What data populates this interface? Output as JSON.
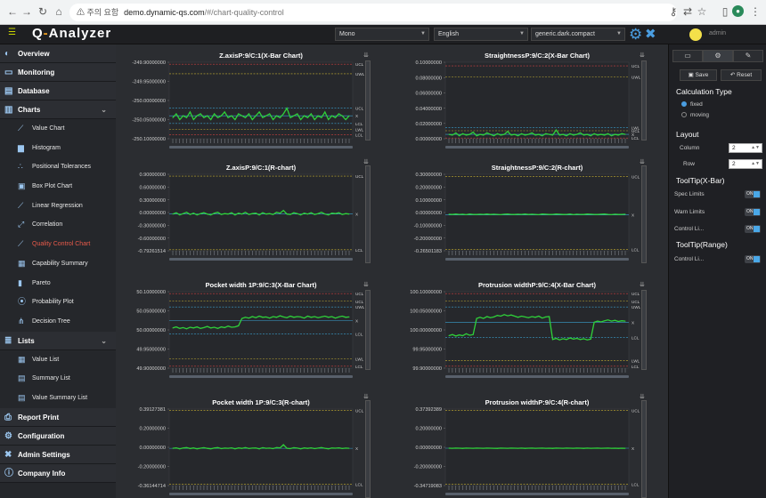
{
  "browser": {
    "warning": "⚠ 주의 요함",
    "host": "demo.dynamic-qs.com",
    "path": "/#/chart-quality-control",
    "nav_icons": [
      "back-icon",
      "forward-icon",
      "reload-icon",
      "home-icon"
    ],
    "right_icons": [
      "key-icon",
      "translate-icon",
      "star-icon",
      "sidebar-icon",
      "profile-icon",
      "menu-icon"
    ]
  },
  "app": {
    "logo_q": "Q",
    "logo_dash": "-",
    "logo_rest": "Analyzer",
    "lang_select": "Mono",
    "locale_select": "English",
    "theme_select": "generic.dark.compact",
    "user": "admin",
    "accent": "#4a9de0"
  },
  "sidebar": {
    "items": [
      {
        "type": "group",
        "label": "Overview",
        "icon": "globe-icon"
      },
      {
        "type": "group",
        "label": "Monitoring",
        "icon": "monitor-icon"
      },
      {
        "type": "group",
        "label": "Database",
        "icon": "database-icon"
      },
      {
        "type": "group",
        "label": "Charts",
        "icon": "chart-icon",
        "expanded": true
      },
      {
        "type": "item",
        "label": "Value Chart",
        "icon": "line-chart-icon"
      },
      {
        "type": "item",
        "label": "Histogram",
        "icon": "histogram-icon"
      },
      {
        "type": "item",
        "label": "Positional Tolerances",
        "icon": "scatter-icon"
      },
      {
        "type": "item",
        "label": "Box Plot Chart",
        "icon": "boxplot-icon"
      },
      {
        "type": "item",
        "label": "Linear Regression",
        "icon": "regression-icon"
      },
      {
        "type": "item",
        "label": "Correlation",
        "icon": "correlation-icon"
      },
      {
        "type": "item",
        "label": "Quality Control Chart",
        "icon": "control-chart-icon",
        "active": true
      },
      {
        "type": "item",
        "label": "Capability Summary",
        "icon": "capability-icon"
      },
      {
        "type": "item",
        "label": "Pareto",
        "icon": "pareto-icon"
      },
      {
        "type": "item",
        "label": "Probability Plot",
        "icon": "probability-icon"
      },
      {
        "type": "item",
        "label": "Decision Tree",
        "icon": "tree-icon"
      },
      {
        "type": "group",
        "label": "Lists",
        "icon": "list-icon",
        "expanded": true
      },
      {
        "type": "item",
        "label": "Value List",
        "icon": "grid-icon"
      },
      {
        "type": "item",
        "label": "Summary List",
        "icon": "summary-icon"
      },
      {
        "type": "item",
        "label": "Value Summary List",
        "icon": "value-summary-icon"
      },
      {
        "type": "group",
        "label": "Report Print",
        "icon": "print-icon"
      },
      {
        "type": "group",
        "label": "Configuration",
        "icon": "gear-icon"
      },
      {
        "type": "group",
        "label": "Admin Settings",
        "icon": "tools-icon"
      },
      {
        "type": "group",
        "label": "Company Info",
        "icon": "info-icon"
      }
    ]
  },
  "chart_data": [
    {
      "type": "line",
      "title": "Z.axisP:9/C:1(X-Bar Chart)",
      "yticks": [
        "-249.90000000",
        "-249.95000000",
        "-250.00000000",
        "-250.05000000",
        "-250.10000000"
      ],
      "ylim": [
        -250.1,
        -249.9
      ],
      "limits": [
        {
          "label": "UCL",
          "value": -249.905,
          "color": "#d04040"
        },
        {
          "label": "UWL",
          "value": -249.93,
          "color": "#c8b030"
        },
        {
          "label": "UCL",
          "value": -250.02,
          "color": "#3aa0d0"
        },
        {
          "label": "X",
          "value": -250.04,
          "color": "#3aa0d0"
        },
        {
          "label": "LCL",
          "value": -250.06,
          "color": "#3aa0d0"
        },
        {
          "label": "LWL",
          "value": -250.075,
          "color": "#c8b030"
        },
        {
          "label": "LCL",
          "value": -250.09,
          "color": "#d04040"
        }
      ],
      "values": [
        -250.045,
        -250.035,
        -250.05,
        -250.04,
        -250.045,
        -250.03,
        -250.05,
        -250.04,
        -250.035,
        -250.045,
        -250.04,
        -250.05,
        -250.035,
        -250.045,
        -250.04,
        -250.03,
        -250.045,
        -250.04,
        -250.05,
        -250.035,
        -250.04,
        -250.045,
        -250.035,
        -250.05,
        -250.04,
        -250.03,
        -250.045,
        -250.04,
        -250.035,
        -250.05,
        -250.04,
        -250.045,
        -250.035,
        -250.02,
        -250.045,
        -250.04,
        -250.035,
        -250.05,
        -250.04,
        -250.045,
        -250.035,
        -250.05,
        -250.04,
        -250.045,
        -250.03,
        -250.05,
        -250.04,
        -250.045,
        -250.035,
        -250.04,
        -250.05,
        -250.04
      ],
      "scroll_box": "tall"
    },
    {
      "type": "line",
      "title": "StraightnessP:9/C:2(X-Bar Chart)",
      "yticks": [
        "0.10000000",
        "0.08000000",
        "0.06000000",
        "0.04000000",
        "0.02000000",
        "0.00000000"
      ],
      "ylim": [
        0,
        0.105
      ],
      "limits": [
        {
          "label": "UCL",
          "value": 0.1,
          "color": "#d04040"
        },
        {
          "label": "UWL",
          "value": 0.085,
          "color": "#c8b030"
        },
        {
          "label": "LWL",
          "value": 0.015,
          "color": "#3aa0d0"
        },
        {
          "label": "UCL",
          "value": 0.011,
          "color": "#c8b030"
        },
        {
          "label": "X",
          "value": 0.006,
          "color": "#3aa0d0"
        },
        {
          "label": "LCL",
          "value": 0.001,
          "color": "#d04040"
        }
      ],
      "values": [
        0.006,
        0.005,
        0.008,
        0.004,
        0.007,
        0.005,
        0.006,
        0.009,
        0.004,
        0.006,
        0.005,
        0.008,
        0.006,
        0.004,
        0.007,
        0.005,
        0.006,
        0.01,
        0.005,
        0.006,
        0.004,
        0.007,
        0.005,
        0.006,
        0.008,
        0.005,
        0.006,
        0.004,
        0.007,
        0.006,
        0.005,
        0.012,
        0.005,
        0.006,
        0.004,
        0.007,
        0.005,
        0.006,
        0.008,
        0.005,
        0.006,
        0.004,
        0.007,
        0.005,
        0.006,
        0.005,
        0.007,
        0.004,
        0.006,
        0.005,
        0.007,
        0.006
      ],
      "scroll_box": "tall"
    },
    {
      "type": "line",
      "title": "Z.axisP:9/C:1(R-chart)",
      "yticks": [
        "0.90000000",
        "0.60000000",
        "0.30000000",
        "0.00000000",
        "-0.30000000",
        "-0.60000000",
        "-0.79261514"
      ],
      "ylim": [
        -0.79261514,
        0.9
      ],
      "limits": [
        {
          "label": "UCL",
          "value": 0.86,
          "color": "#c8b030"
        },
        {
          "label": "X",
          "value": 0.02,
          "color": "#3aa0d0"
        },
        {
          "label": "LCL",
          "value": -0.77,
          "color": "#c8b030"
        }
      ],
      "values": [
        0.02,
        0.05,
        0.0,
        0.03,
        0.06,
        0.01,
        0.04,
        0.0,
        0.03,
        0.05,
        0.02,
        0.0,
        0.04,
        0.06,
        0.01,
        0.03,
        0.02,
        0.05,
        0.0,
        0.04,
        0.02,
        0.06,
        0.01,
        0.03,
        0.04,
        0.0,
        0.05,
        0.02,
        0.03,
        0.01,
        0.06,
        0.04,
        0.1,
        0.02,
        0.01,
        0.05,
        0.03,
        0.0,
        0.04,
        0.02,
        0.05,
        0.01,
        0.03,
        0.06,
        0.02,
        0.0,
        0.04,
        0.03,
        0.05,
        0.01,
        0.03,
        0.02
      ],
      "scroll_box": "short"
    },
    {
      "type": "line",
      "title": "StraightnessP:9/C:2(R-chart)",
      "yticks": [
        "0.30000000",
        "0.20000000",
        "0.10000000",
        "0.00000000",
        "-0.10000000",
        "-0.20000000",
        "-0.26501183"
      ],
      "ylim": [
        -0.26501183,
        0.3
      ],
      "limits": [
        {
          "label": "UCL",
          "value": 0.285,
          "color": "#c8b030"
        },
        {
          "label": "X",
          "value": 0.0,
          "color": "#3aa0d0"
        },
        {
          "label": "LCL",
          "value": -0.255,
          "color": "#c8b030"
        }
      ],
      "values": [
        0.005,
        0.003,
        0.006,
        0.004,
        0.005,
        0.002,
        0.006,
        0.004,
        0.003,
        0.005,
        0.004,
        0.006,
        0.003,
        0.005,
        0.004,
        0.002,
        0.005,
        0.006,
        0.004,
        0.003,
        0.005,
        0.004,
        0.006,
        0.003,
        0.005,
        0.004,
        0.002,
        0.006,
        0.005,
        0.003,
        0.004,
        0.006,
        0.005,
        0.003,
        0.004,
        0.006,
        0.002,
        0.005,
        0.004,
        0.003,
        0.006,
        0.005,
        0.004,
        0.003,
        0.005,
        0.006,
        0.004,
        0.002,
        0.005,
        0.003,
        0.004,
        0.005
      ],
      "scroll_box": "short"
    },
    {
      "type": "line",
      "title": "Pocket width 1P:9/C:3(X-Bar Chart)",
      "yticks": [
        "50.10000000",
        "50.05000000",
        "50.00000000",
        "49.95000000",
        "49.90000000"
      ],
      "ylim": [
        49.9,
        50.1
      ],
      "limits": [
        {
          "label": "UCL",
          "value": 50.095,
          "color": "#d04040"
        },
        {
          "label": "UCL",
          "value": 50.075,
          "color": "#c8b030"
        },
        {
          "label": "UWL",
          "value": 50.06,
          "color": "#3aa0d0"
        },
        {
          "label": "X",
          "value": 50.025,
          "color": "#3aa0d0"
        },
        {
          "label": "LCL",
          "value": 49.99,
          "color": "#3aa0d0"
        },
        {
          "label": "LWL",
          "value": 49.925,
          "color": "#c8b030"
        },
        {
          "label": "LCL",
          "value": 49.905,
          "color": "#d04040"
        }
      ],
      "values": [
        50.005,
        50.008,
        50.004,
        50.006,
        50.003,
        50.007,
        50.005,
        50.008,
        50.004,
        50.006,
        50.009,
        50.005,
        50.007,
        50.004,
        50.008,
        50.006,
        50.01,
        50.007,
        50.008,
        50.011,
        50.03,
        50.033,
        50.031,
        50.035,
        50.032,
        50.036,
        50.033,
        50.034,
        50.031,
        50.035,
        50.033,
        50.037,
        50.034,
        50.032,
        50.036,
        50.033,
        50.035,
        50.034,
        50.031,
        50.036,
        50.033,
        50.035,
        50.032,
        50.034,
        50.036,
        50.033,
        50.035,
        50.031,
        50.034,
        50.036,
        50.033,
        50.034
      ],
      "scroll_box": "tall"
    },
    {
      "type": "line",
      "title": "Protrusion widthP:9/C:4(X-Bar Chart)",
      "yticks": [
        "100.10000000",
        "100.05000000",
        "100.00000000",
        "99.95000000",
        "99.90000000"
      ],
      "ylim": [
        99.9,
        100.1
      ],
      "limits": [
        {
          "label": "UCL",
          "value": 100.095,
          "color": "#d04040"
        },
        {
          "label": "UCL",
          "value": 100.075,
          "color": "#c8b030"
        },
        {
          "label": "UWL",
          "value": 100.06,
          "color": "#3aa0d0"
        },
        {
          "label": "X",
          "value": 100.02,
          "color": "#3aa0d0"
        },
        {
          "label": "LCL",
          "value": 99.98,
          "color": "#3aa0d0"
        },
        {
          "label": "LWL",
          "value": 99.92,
          "color": "#c8b030"
        },
        {
          "label": "LCL",
          "value": 99.905,
          "color": "#d04040"
        }
      ],
      "values": [
        99.985,
        99.988,
        99.984,
        99.987,
        99.985,
        99.99,
        99.986,
        99.988,
        100.03,
        100.033,
        100.03,
        100.035,
        100.032,
        100.034,
        100.038,
        100.036,
        100.04,
        100.037,
        100.039,
        100.036,
        100.033,
        100.036,
        100.034,
        100.032,
        100.035,
        100.033,
        100.036,
        100.031,
        100.034,
        100.035,
        99.975,
        99.978,
        99.974,
        99.977,
        99.975,
        99.979,
        99.976,
        99.978,
        99.975,
        99.977,
        99.974,
        99.976,
        100.02,
        100.023,
        100.021,
        100.024,
        100.026,
        100.023,
        100.025,
        100.022,
        100.024,
        100.023
      ],
      "scroll_box": "tall"
    },
    {
      "type": "line",
      "title": "Pocket width 1P:9/C:3(R-chart)",
      "yticks": [
        "0.39127381",
        "0.20000000",
        "0.00000000",
        "-0.20000000",
        "-0.36144714"
      ],
      "ylim": [
        -0.36144714,
        0.39127381
      ],
      "limits": [
        {
          "label": "UCL",
          "value": 0.38,
          "color": "#c8b030"
        },
        {
          "label": "X",
          "value": 0.005,
          "color": "#3aa0d0"
        },
        {
          "label": "LCL",
          "value": -0.35,
          "color": "#c8b030"
        }
      ],
      "values": [
        0.005,
        0.01,
        0.0,
        0.008,
        0.012,
        0.003,
        0.009,
        0.0,
        0.006,
        0.011,
        0.004,
        0.0,
        0.008,
        0.012,
        0.002,
        0.007,
        0.005,
        0.01,
        0.0,
        0.009,
        0.004,
        0.012,
        0.003,
        0.007,
        0.008,
        0.0,
        0.011,
        0.005,
        0.007,
        0.002,
        0.012,
        0.009,
        0.04,
        0.005,
        0.002,
        0.011,
        0.007,
        0.0,
        0.009,
        0.004,
        0.01,
        0.002,
        0.007,
        0.012,
        0.005,
        0.0,
        0.008,
        0.006,
        0.01,
        0.003,
        0.007,
        0.005
      ],
      "scroll_box": "short"
    },
    {
      "type": "line",
      "title": "Protrusion widthP:9/C:4(R-chart)",
      "yticks": [
        "0.37392389",
        "0.20000000",
        "0.00000000",
        "-0.20000000",
        "-0.34719083"
      ],
      "ylim": [
        -0.34719083,
        0.37392389
      ],
      "limits": [
        {
          "label": "UCL",
          "value": 0.36,
          "color": "#c8b030"
        },
        {
          "label": "X",
          "value": 0.005,
          "color": "#3aa0d0"
        },
        {
          "label": "LCL",
          "value": -0.335,
          "color": "#c8b030"
        }
      ],
      "values": [
        0.005,
        0.004,
        0.006,
        0.005,
        0.003,
        0.006,
        0.005,
        0.004,
        0.006,
        0.005,
        0.004,
        0.006,
        0.005,
        0.004,
        0.003,
        0.006,
        0.005,
        0.004,
        0.006,
        0.005,
        0.004,
        0.006,
        0.003,
        0.005,
        0.006,
        0.004,
        0.005,
        0.006,
        0.004,
        0.005,
        0.003,
        0.006,
        0.005,
        0.004,
        0.006,
        0.005,
        0.004,
        0.006,
        0.005,
        0.003,
        0.006,
        0.004,
        0.005,
        0.006,
        0.004,
        0.005,
        0.006,
        0.004,
        0.005,
        0.003,
        0.005,
        0.004
      ],
      "scroll_box": "short"
    }
  ],
  "rpanel": {
    "tabs": [
      "▭",
      "⚙",
      "✎"
    ],
    "save": "Save",
    "reset": "Reset",
    "calc_title": "Calculation Type",
    "calc_options": [
      "fixed",
      "moving"
    ],
    "calc_selected": "fixed",
    "layout_title": "Layout",
    "column_label": "Column",
    "column_value": "2",
    "row_label": "Row",
    "row_value": "2",
    "tt_xbar_title": "ToolTip(X-Bar)",
    "spec_label": "Spec Limits",
    "warn_label": "Warn Limits",
    "control_label": "Control Li...",
    "tt_range_title": "ToolTip(Range)",
    "range_control_label": "Control Li...",
    "toggle_text": "ON"
  }
}
